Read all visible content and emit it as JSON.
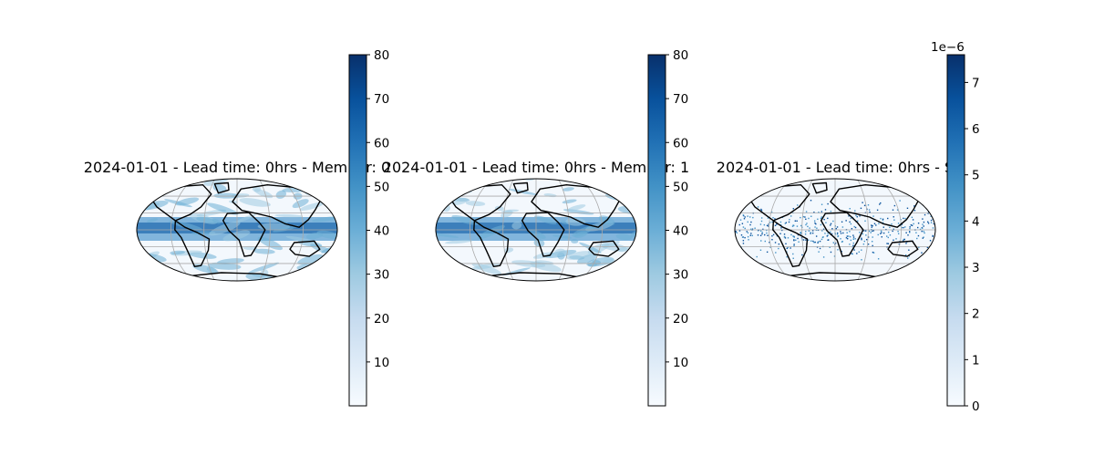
{
  "chart_data": [
    {
      "type": "heatmap",
      "projection": "robinson",
      "title": "2024-01-01 - Lead time: 0hrs - Member: 0",
      "colormap": "Blues",
      "colorbar": {
        "min": 0,
        "max": 80,
        "ticks": [
          10,
          20,
          30,
          40,
          50,
          60,
          70,
          80
        ],
        "tick_labels": [
          "10",
          "20",
          "30",
          "40",
          "50",
          "60",
          "70",
          "80"
        ]
      },
      "gridlines": true,
      "coastlines": true
    },
    {
      "type": "heatmap",
      "projection": "robinson",
      "title": "2024-01-01 - Lead time: 0hrs - Member: 1",
      "colormap": "Blues",
      "colorbar": {
        "min": 0,
        "max": 80,
        "ticks": [
          10,
          20,
          30,
          40,
          50,
          60,
          70,
          80
        ],
        "tick_labels": [
          "10",
          "20",
          "30",
          "40",
          "50",
          "60",
          "70",
          "80"
        ]
      },
      "gridlines": true,
      "coastlines": true
    },
    {
      "type": "heatmap",
      "projection": "robinson",
      "title": "2024-01-01 - Lead time: 0hrs - S",
      "colormap": "Blues",
      "colorbar": {
        "min": 0,
        "max": 7.6e-06,
        "ticks": [
          0,
          1,
          2,
          3,
          4,
          5,
          6,
          7
        ],
        "tick_labels": [
          "0",
          "1",
          "2",
          "3",
          "4",
          "5",
          "6",
          "7"
        ],
        "offset_label": "1e−6"
      },
      "gridlines": true,
      "coastlines": true
    }
  ]
}
